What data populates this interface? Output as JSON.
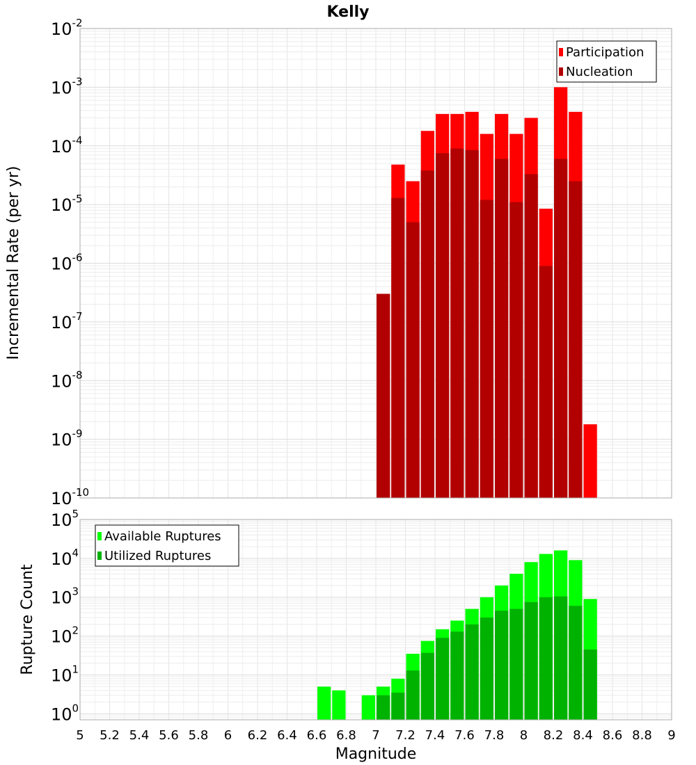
{
  "chart_data": [
    {
      "type": "bar",
      "title": "Kelly",
      "ylabel": "Incremental Rate (per yr)",
      "xlabel": "",
      "y_scale": "log",
      "ylim": [
        1e-10,
        0.01
      ],
      "xlim": [
        5,
        9
      ],
      "bin_width": 0.1,
      "grid": true,
      "legend_position": "top-right",
      "x": [
        7.05,
        7.15,
        7.25,
        7.35,
        7.45,
        7.55,
        7.65,
        7.75,
        7.85,
        7.95,
        8.05,
        8.15,
        8.25,
        8.35,
        8.45
      ],
      "series": [
        {
          "name": "Participation",
          "color": "#ff0000",
          "values": [
            3e-07,
            4.8e-05,
            2.5e-05,
            0.00018,
            0.00035,
            0.00035,
            0.00038,
            0.00016,
            0.00035,
            0.00016,
            0.0003,
            8.5e-06,
            0.001,
            0.00038,
            1.8e-09
          ]
        },
        {
          "name": "Nucleation",
          "color": "#b20000",
          "values": [
            3e-07,
            1.3e-05,
            5e-06,
            3.8e-05,
            7.5e-05,
            9e-05,
            8.5e-05,
            1.2e-05,
            6e-05,
            1.1e-05,
            3.3e-05,
            9e-07,
            6e-05,
            2.5e-05,
            null
          ]
        }
      ]
    },
    {
      "type": "bar",
      "title": "",
      "ylabel": "Rupture Count",
      "xlabel": "Magnitude",
      "y_scale": "log",
      "ylim": [
        0.7,
        100000
      ],
      "xlim": [
        5,
        9
      ],
      "bin_width": 0.1,
      "grid": true,
      "legend_position": "top-left",
      "x": [
        6.65,
        6.75,
        6.95,
        7.05,
        7.15,
        7.25,
        7.35,
        7.45,
        7.55,
        7.65,
        7.75,
        7.85,
        7.95,
        8.05,
        8.15,
        8.25,
        8.35,
        8.45
      ],
      "series": [
        {
          "name": "Available Ruptures",
          "color": "#00ff00",
          "values": [
            5,
            4,
            3,
            5,
            8,
            35,
            75,
            150,
            250,
            500,
            1000,
            2000,
            4000,
            8000,
            13000,
            16000,
            9000,
            900
          ]
        },
        {
          "name": "Utilized Ruptures",
          "color": "#00b200",
          "values": [
            null,
            null,
            null,
            3,
            3.5,
            13,
            37,
            90,
            130,
            200,
            300,
            450,
            500,
            750,
            1000,
            1050,
            600,
            45
          ]
        }
      ]
    }
  ],
  "x_ticks": [
    "5",
    "5.2",
    "5.4",
    "5.6",
    "5.8",
    "6",
    "6.2",
    "6.4",
    "6.6",
    "6.8",
    "7",
    "7.2",
    "7.4",
    "7.6",
    "7.8",
    "8",
    "8.2",
    "8.4",
    "8.6",
    "8.8",
    "9"
  ],
  "top_y_ticks": [
    {
      "base": "10",
      "exp": "-2"
    },
    {
      "base": "10",
      "exp": "-3"
    },
    {
      "base": "10",
      "exp": "-4"
    },
    {
      "base": "10",
      "exp": "-5"
    },
    {
      "base": "10",
      "exp": "-6"
    },
    {
      "base": "10",
      "exp": "-7"
    },
    {
      "base": "10",
      "exp": "-8"
    },
    {
      "base": "10",
      "exp": "-9"
    },
    {
      "base": "10",
      "exp": "-10"
    }
  ],
  "bottom_y_ticks": [
    {
      "base": "10",
      "exp": "5"
    },
    {
      "base": "10",
      "exp": "4"
    },
    {
      "base": "10",
      "exp": "3"
    },
    {
      "base": "10",
      "exp": "2"
    },
    {
      "base": "10",
      "exp": "1"
    },
    {
      "base": "10",
      "exp": "0"
    }
  ]
}
